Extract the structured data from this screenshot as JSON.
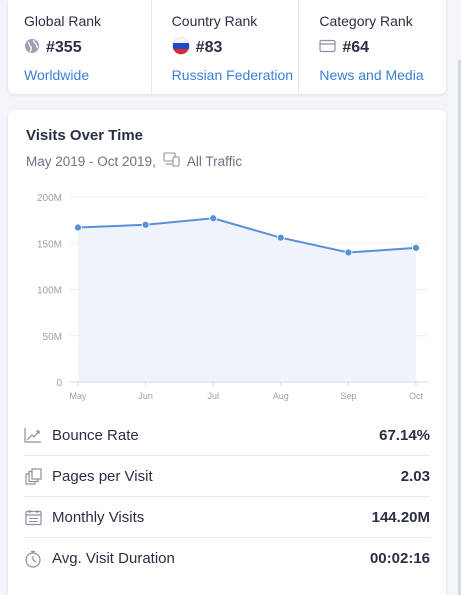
{
  "ranks": {
    "global": {
      "title": "Global Rank",
      "value": "#355",
      "link": "Worldwide",
      "icon": "globe-icon"
    },
    "country": {
      "title": "Country Rank",
      "value": "#83",
      "link": "Russian Federation",
      "icon": "russia-flag-icon"
    },
    "category": {
      "title": "Category Rank",
      "value": "#64",
      "link": "News and Media",
      "icon": "folder-icon"
    }
  },
  "visits": {
    "title": "Visits Over Time",
    "date_range": "May 2019 - Oct 2019,",
    "traffic": "All Traffic"
  },
  "chart_data": {
    "type": "area",
    "categories": [
      "May",
      "Jun",
      "Jul",
      "Aug",
      "Sep",
      "Oct"
    ],
    "values": [
      167,
      170,
      177,
      156,
      140,
      145
    ],
    "y_ticks": [
      "200M",
      "150M",
      "100M",
      "50M",
      "0"
    ],
    "ylim": [
      0,
      200
    ],
    "grid": true,
    "line_color": "#5a8fd8",
    "fill_color": "#eef3fc"
  },
  "metrics": [
    {
      "label": "Bounce Rate",
      "value": "67.14%",
      "icon": "bounce-rate-icon"
    },
    {
      "label": "Pages per Visit",
      "value": "2.03",
      "icon": "pages-icon"
    },
    {
      "label": "Monthly Visits",
      "value": "144.20M",
      "icon": "calendar-icon"
    },
    {
      "label": "Avg. Visit Duration",
      "value": "00:02:16",
      "icon": "stopwatch-icon"
    }
  ],
  "colors": {
    "link": "#3b7fd4",
    "accent": "#5a8fd8"
  }
}
